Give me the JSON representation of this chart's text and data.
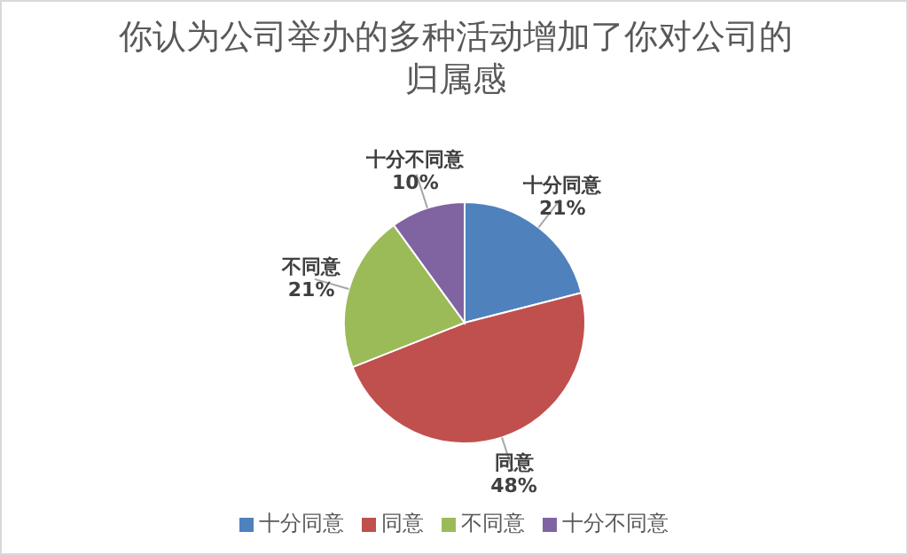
{
  "chart_data": {
    "type": "pie",
    "title": "你认为公司举办的多种活动增加了你对公司的归属感",
    "categories": [
      "十分同意",
      "同意",
      "不同意",
      "十分不同意"
    ],
    "values": [
      21,
      48,
      21,
      10
    ],
    "colors": [
      "#4f81bd",
      "#c0504d",
      "#9bbb59",
      "#8064a2"
    ],
    "value_labels": [
      "21%",
      "48%",
      "21%",
      "10%"
    ],
    "legend": "bottom"
  }
}
